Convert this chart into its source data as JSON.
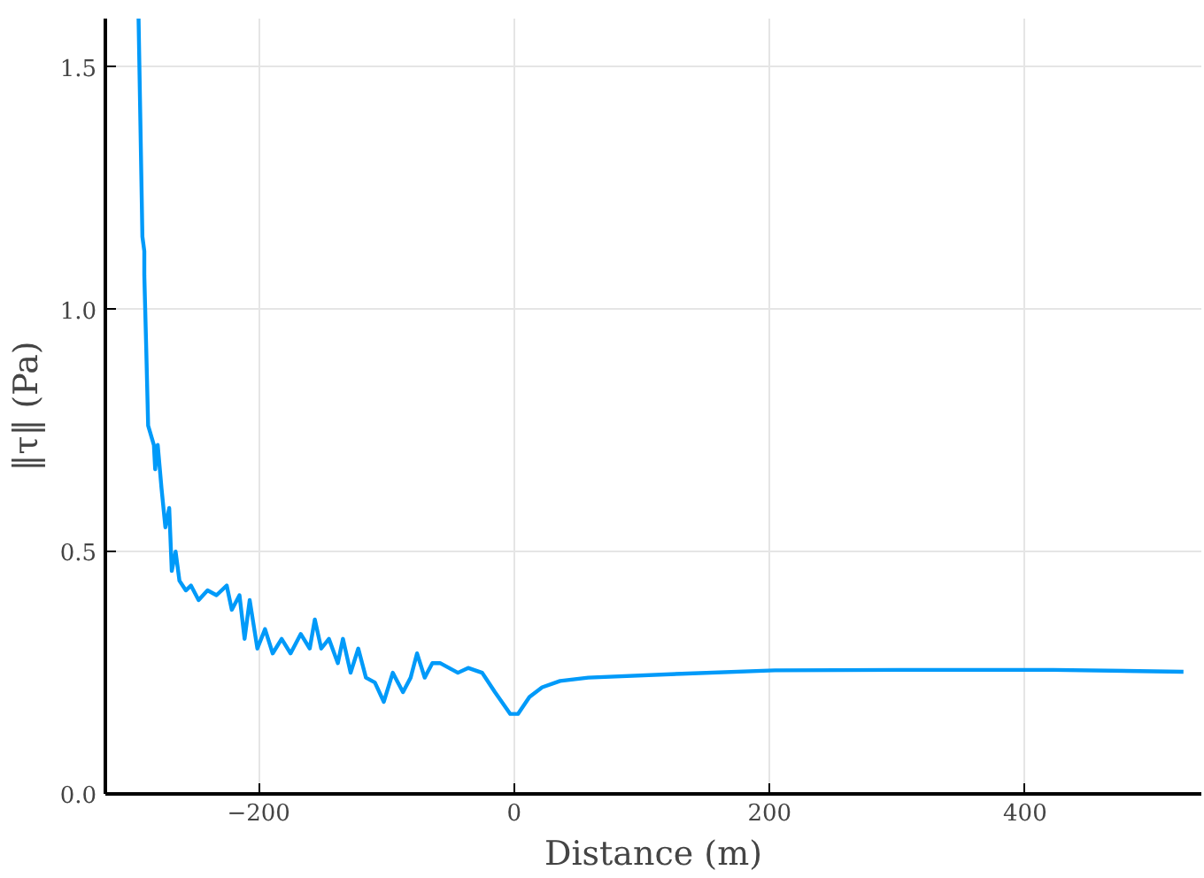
{
  "chart_data": {
    "type": "line",
    "xlabel": "Distance (m)",
    "ylabel": "‖τ‖ (Pa)",
    "xlim": [
      -320,
      538
    ],
    "ylim": [
      0,
      1.6
    ],
    "xticks": [
      {
        "value": -200,
        "label": "−200"
      },
      0,
      200,
      400
    ],
    "yticks": [
      {
        "value": 0,
        "label": "0.0"
      },
      0.5,
      {
        "value": 1,
        "label": "1.0"
      },
      1.5
    ],
    "grid": true,
    "series": [
      {
        "color": "#009af9",
        "x": [
          -294,
          -291,
          -289.5,
          -289.5,
          -288,
          -286.5,
          -282,
          -281,
          -279,
          -276,
          -273,
          -270,
          -268,
          -265,
          -262,
          -257,
          -253,
          -247,
          -240,
          -233,
          -225,
          -221,
          -215,
          -211,
          -207,
          -201,
          -195,
          -189,
          -182,
          -175,
          -167,
          -160,
          -156,
          -151,
          -145,
          -138,
          -134,
          -128,
          -122,
          -116,
          -109,
          -102,
          -95,
          -87,
          -81,
          -76,
          -70,
          -64,
          -58,
          -51,
          -44,
          -36,
          -25,
          -15,
          -3,
          3,
          12,
          22,
          36,
          58,
          131,
          204,
          305,
          422,
          524
        ],
        "values": [
          1.6,
          1.15,
          1.12,
          1.07,
          0.92,
          0.76,
          0.72,
          0.67,
          0.72,
          0.63,
          0.55,
          0.59,
          0.46,
          0.5,
          0.44,
          0.42,
          0.43,
          0.4,
          0.42,
          0.41,
          0.43,
          0.38,
          0.41,
          0.32,
          0.4,
          0.3,
          0.34,
          0.29,
          0.32,
          0.29,
          0.33,
          0.3,
          0.36,
          0.3,
          0.32,
          0.27,
          0.32,
          0.25,
          0.3,
          0.24,
          0.23,
          0.19,
          0.25,
          0.21,
          0.24,
          0.29,
          0.24,
          0.27,
          0.27,
          0.26,
          0.25,
          0.26,
          0.25,
          0.21,
          0.165,
          0.165,
          0.2,
          0.22,
          0.233,
          0.24,
          0.248,
          0.255,
          0.256,
          0.256,
          0.252
        ]
      }
    ]
  }
}
